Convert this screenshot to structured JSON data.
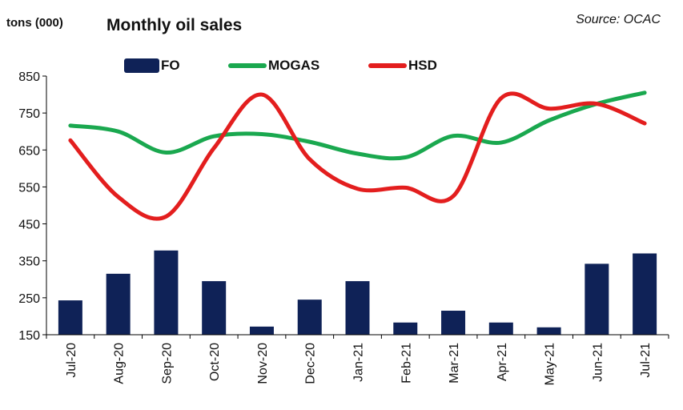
{
  "header": {
    "unit_label": "tons (000)",
    "title": "Monthly oil sales",
    "source": "Source: OCAC"
  },
  "chart_data": {
    "type": "bar",
    "title": "Monthly oil sales",
    "ylabel": "tons (000)",
    "xlabel": "",
    "categories": [
      "Jul-20",
      "Aug-20",
      "Sep-20",
      "Oct-20",
      "Nov-20",
      "Dec-20",
      "Jan-21",
      "Feb-21",
      "Mar-21",
      "Apr-21",
      "May-21",
      "Jun-21",
      "Jul-21"
    ],
    "ylim": [
      150,
      850
    ],
    "yticks": [
      150,
      250,
      350,
      450,
      550,
      650,
      750,
      850
    ],
    "grid": false,
    "legend_position": "top",
    "series": [
      {
        "name": "FO",
        "type": "bar",
        "color": "#0f2257",
        "values": [
          243,
          315,
          378,
          295,
          172,
          245,
          295,
          183,
          215,
          183,
          170,
          342,
          370
        ]
      },
      {
        "name": "MOGAS",
        "type": "line",
        "color": "#1aa84f",
        "values": [
          716,
          700,
          643,
          687,
          693,
          672,
          640,
          630,
          688,
          670,
          730,
          775,
          805
        ]
      },
      {
        "name": "HSD",
        "type": "line",
        "color": "#e31e1e",
        "values": [
          676,
          523,
          470,
          655,
          800,
          625,
          545,
          548,
          525,
          790,
          762,
          775,
          722
        ]
      }
    ]
  }
}
